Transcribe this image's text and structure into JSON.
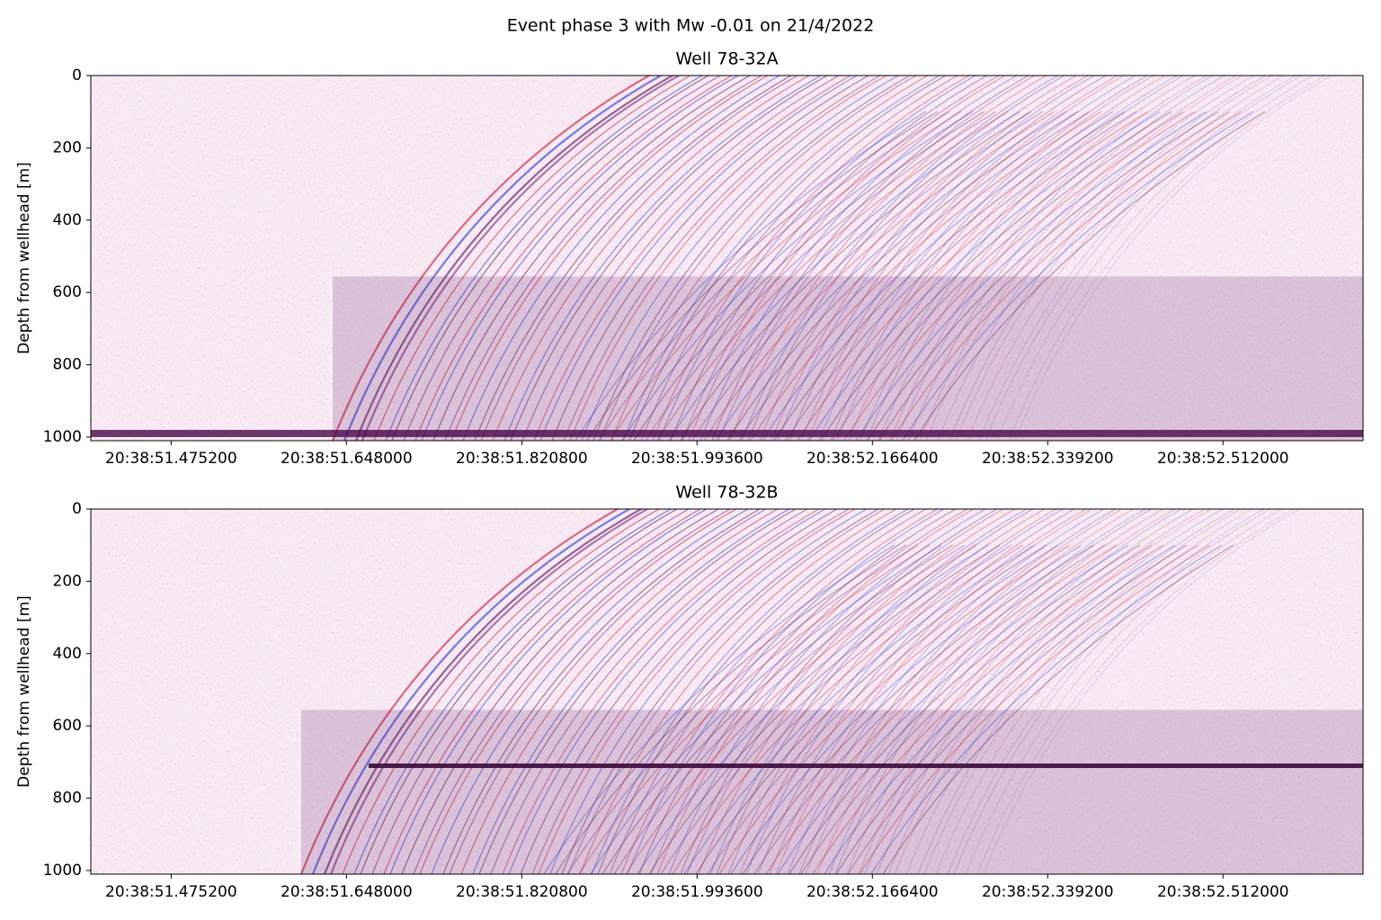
{
  "title": "Event phase 3 with Mw -0.01 on 21/4/2022",
  "chart_data": [
    {
      "type": "heatmap",
      "title": "Well 78-32A",
      "ylabel": "Depth from wellhead [m]",
      "xlim": [
        51.396,
        52.65
      ],
      "xticks": [
        {
          "value": 51.4752,
          "label": "20:38:51.475200"
        },
        {
          "value": 51.648,
          "label": "20:38:51.648000"
        },
        {
          "value": 51.8208,
          "label": "20:38:51.820800"
        },
        {
          "value": 51.9936,
          "label": "20:38:51.993600"
        },
        {
          "value": 52.1664,
          "label": "20:38:52.166400"
        },
        {
          "value": 52.3392,
          "label": "20:38:52.339200"
        },
        {
          "value": 52.512,
          "label": "20:38:52.512000"
        }
      ],
      "ylim": [
        1010,
        0
      ],
      "yticks": [
        0,
        200,
        400,
        600,
        800,
        1000
      ]
    },
    {
      "type": "heatmap",
      "title": "Well 78-32B",
      "ylabel": "Depth from wellhead [m]",
      "xlim": [
        51.396,
        52.65
      ],
      "xticks": [
        {
          "value": 51.4752,
          "label": "20:38:51.475200"
        },
        {
          "value": 51.648,
          "label": "20:38:51.648000"
        },
        {
          "value": 51.8208,
          "label": "20:38:51.820800"
        },
        {
          "value": 51.9936,
          "label": "20:38:51.993600"
        },
        {
          "value": 52.1664,
          "label": "20:38:52.166400"
        },
        {
          "value": 52.3392,
          "label": "20:38:52.339200"
        },
        {
          "value": 52.512,
          "label": "20:38:52.512000"
        }
      ],
      "ylim": [
        1010,
        0
      ],
      "yticks": [
        0,
        200,
        400,
        600,
        800,
        1000
      ]
    }
  ]
}
